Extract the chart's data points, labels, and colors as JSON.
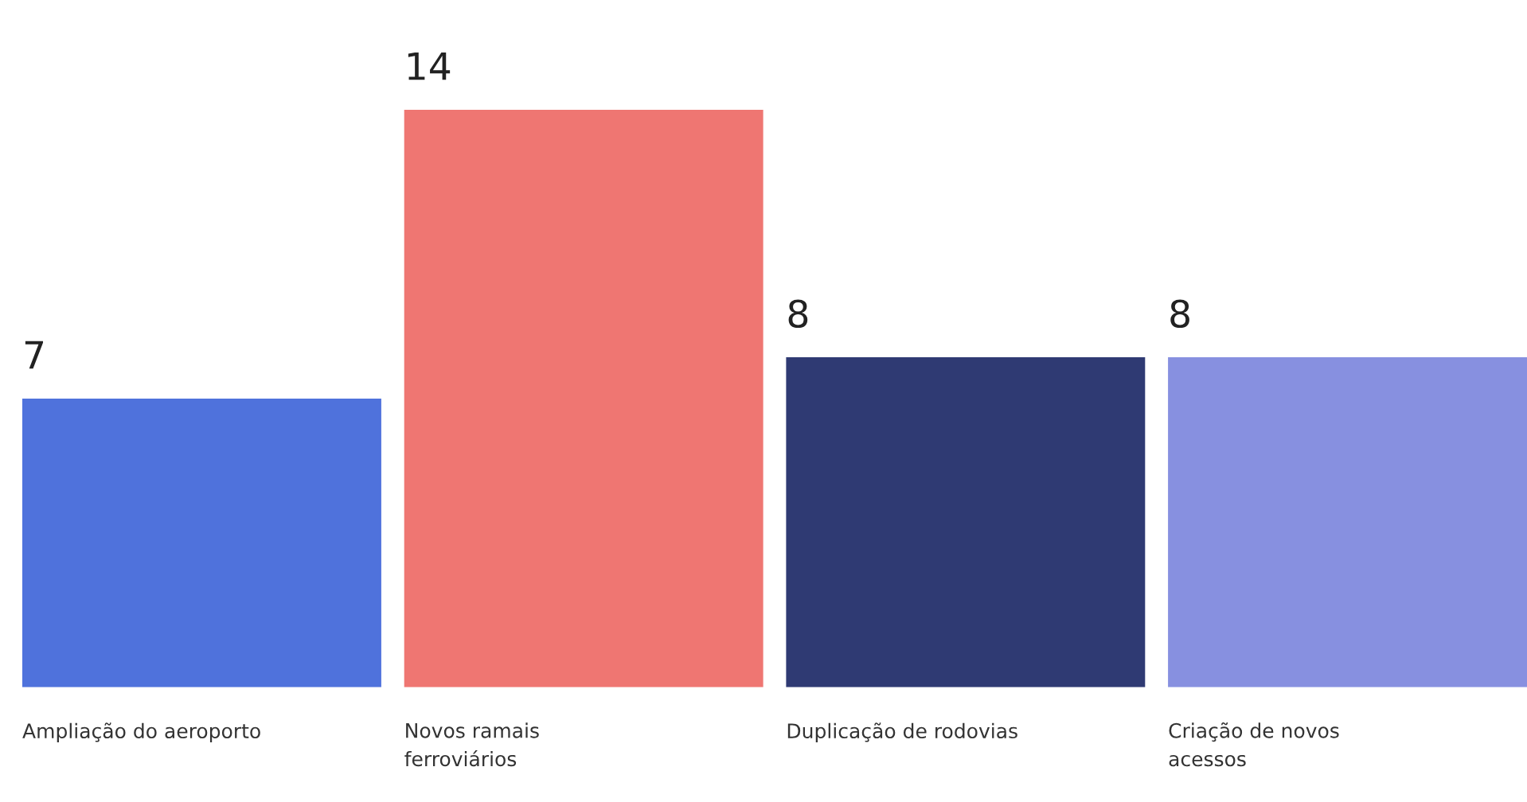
{
  "chart_data": {
    "type": "bar",
    "categories": [
      "Ampliação do aeroporto",
      "Novos ramais\nferroviários",
      "Duplicação de rodovias",
      "Criação de novos\nacessos"
    ],
    "values": [
      7,
      14,
      8,
      8
    ],
    "colors": [
      "#4f72dc",
      "#ef7672",
      "#2f3a73",
      "#8790e0"
    ],
    "data_labels": true
  }
}
